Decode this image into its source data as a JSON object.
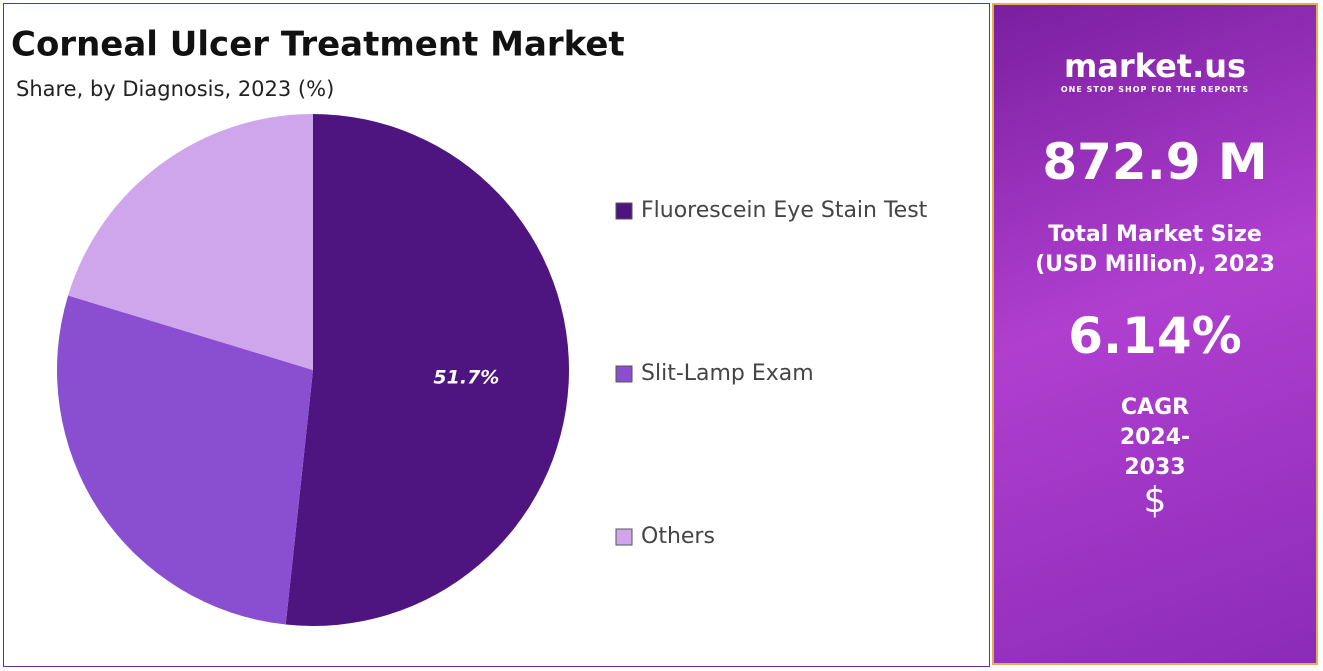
{
  "chart_data": {
    "type": "pie",
    "title": "Corneal Ulcer Treatment Market",
    "subtitle": "Share, by Diagnosis, 2023 (%)",
    "categories": [
      "Fluorescein Eye Stain Test",
      "Slit-Lamp Exam",
      "Others"
    ],
    "values": [
      51.7,
      28,
      20.3
    ],
    "value_labels": [
      "51.7%",
      null,
      null
    ],
    "colors": [
      "#4e1580",
      "#8a4fd0",
      "#cfa6ec"
    ]
  },
  "side_panel": {
    "logo": "market.us",
    "tagline": "ONE STOP SHOP FOR THE REPORTS",
    "market_size": "872.9 M",
    "market_size_label": "Total Market Size (USD Million), 2023",
    "cagr": "6.14%",
    "cagr_label": "CAGR 2024-2033",
    "currency": "$"
  }
}
